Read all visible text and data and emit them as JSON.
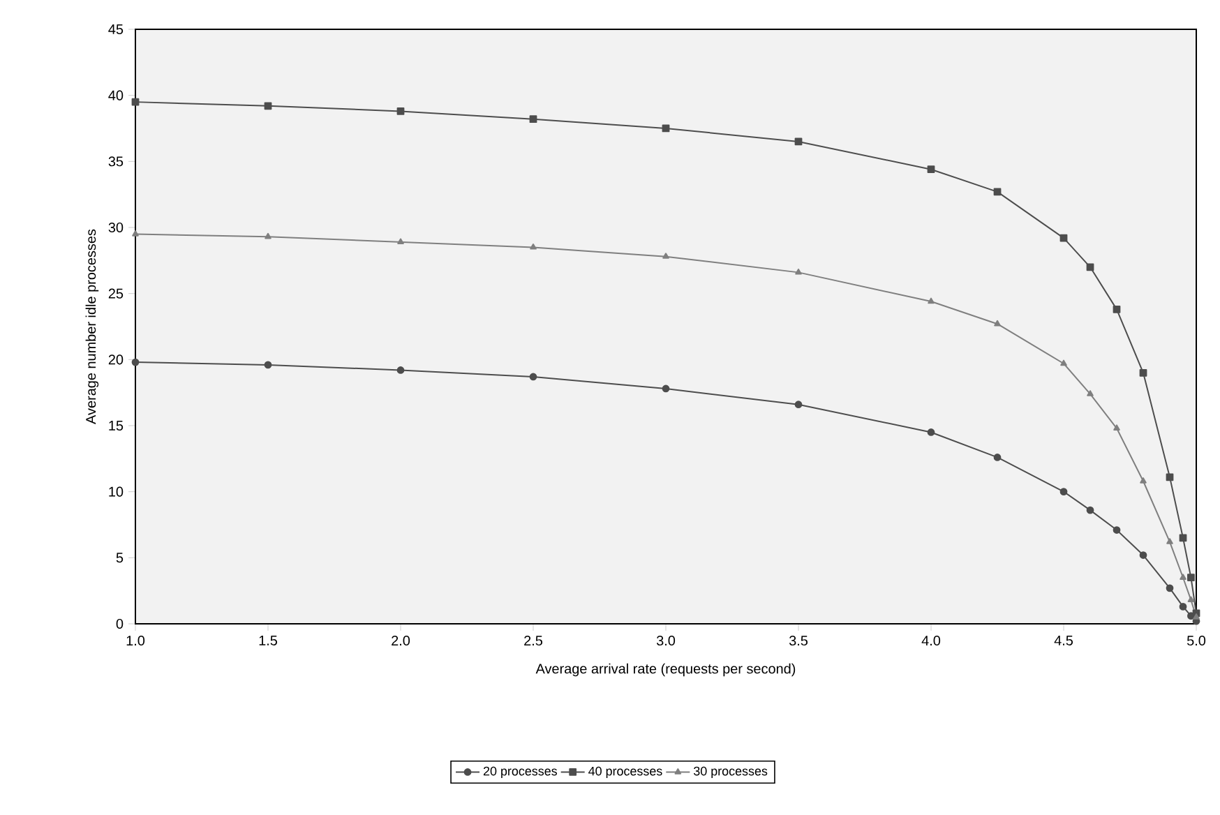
{
  "chart_data": {
    "type": "line",
    "xlabel": "Average arrival rate (requests per second)",
    "ylabel": "Average number idle processes",
    "xlim": [
      1.0,
      5.0
    ],
    "ylim": [
      0,
      45
    ],
    "xticks": [
      {
        "value": 1.0,
        "label": "1.0"
      },
      {
        "value": 1.5,
        "label": "1.5"
      },
      {
        "value": 2.0,
        "label": "2.0"
      },
      {
        "value": 2.5,
        "label": "2.5"
      },
      {
        "value": 3.0,
        "label": "3.0"
      },
      {
        "value": 3.5,
        "label": "3.5"
      },
      {
        "value": 4.0,
        "label": "4.0"
      },
      {
        "value": 4.5,
        "label": "4.5"
      },
      {
        "value": 5.0,
        "label": "5.0"
      }
    ],
    "yticks": [
      0,
      5,
      10,
      15,
      20,
      25,
      30,
      35,
      40,
      45
    ],
    "x": [
      1.0,
      1.5,
      2.0,
      2.5,
      3.0,
      3.5,
      4.0,
      4.25,
      4.5,
      4.6,
      4.7,
      4.8,
      4.9,
      4.95,
      4.98,
      5.0
    ],
    "series": [
      {
        "name": "20 processes",
        "color": "#4d4d4d",
        "marker": "circle",
        "values": [
          19.8,
          19.6,
          19.2,
          18.7,
          17.8,
          16.6,
          14.5,
          12.6,
          10.0,
          8.6,
          7.1,
          5.2,
          2.7,
          1.3,
          0.6,
          0.2
        ]
      },
      {
        "name": "40 processes",
        "color": "#4d4d4d",
        "marker": "square",
        "values": [
          39.5,
          39.2,
          38.8,
          38.2,
          37.5,
          36.5,
          34.4,
          32.7,
          29.2,
          27.0,
          23.8,
          19.0,
          11.1,
          6.5,
          3.5,
          0.8
        ]
      },
      {
        "name": "30 processes",
        "color": "#7f7f7f",
        "marker": "triangle",
        "values": [
          29.5,
          29.3,
          28.9,
          28.5,
          27.8,
          26.6,
          24.4,
          22.7,
          19.7,
          17.4,
          14.8,
          10.8,
          6.2,
          3.5,
          1.8,
          0.5
        ]
      }
    ],
    "legend": "bottom",
    "grid": false,
    "line_style": "solid"
  }
}
